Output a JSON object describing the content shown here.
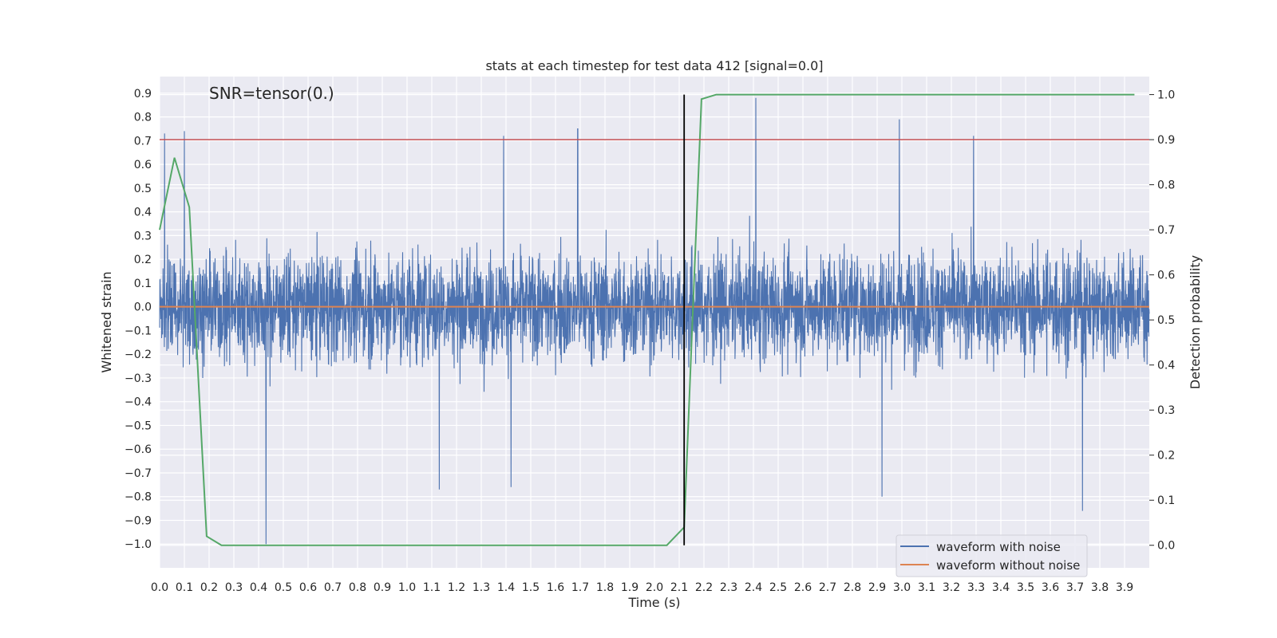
{
  "chart_data": {
    "type": "line",
    "title": "stats at each timestep for test data 412 [signal=0.0]",
    "xlabel": "Time (s)",
    "ylabel": "Whitened strain",
    "y2label": "Detection probability",
    "annotation": "SNR=tensor(0.)",
    "xlim": [
      0.0,
      4.0
    ],
    "ylim": [
      -1.1,
      0.97
    ],
    "y2lim": [
      -0.05,
      1.04
    ],
    "x_ticks": [
      "0.0",
      "0.1",
      "0.2",
      "0.3",
      "0.4",
      "0.5",
      "0.6",
      "0.7",
      "0.8",
      "0.9",
      "1.0",
      "1.1",
      "1.2",
      "1.3",
      "1.4",
      "1.5",
      "1.6",
      "1.7",
      "1.8",
      "1.9",
      "2.0",
      "2.1",
      "2.2",
      "2.3",
      "2.4",
      "2.5",
      "2.6",
      "2.7",
      "2.8",
      "2.9",
      "3.0",
      "3.1",
      "3.2",
      "3.3",
      "3.4",
      "3.5",
      "3.6",
      "3.7",
      "3.8",
      "3.9"
    ],
    "y_ticks": [
      "0.9",
      "0.8",
      "0.7",
      "0.6",
      "0.5",
      "0.4",
      "0.3",
      "0.2",
      "0.1",
      "0.0",
      "−0.1",
      "−0.2",
      "−0.3",
      "−0.4",
      "−0.5",
      "−0.6",
      "−0.7",
      "−0.8",
      "−0.9",
      "−1.0"
    ],
    "y2_ticks": [
      "1.0",
      "0.9",
      "0.8",
      "0.7",
      "0.6",
      "0.5",
      "0.4",
      "0.3",
      "0.2",
      "0.1",
      "0.0"
    ],
    "grid": true,
    "legend_position": "lower-right",
    "series": [
      {
        "name": "waveform with noise",
        "color": "#4c72b0",
        "axis": "left",
        "noise_sigma": 0.22,
        "spikes": [
          [
            0.02,
            0.73
          ],
          [
            0.1,
            0.74
          ],
          [
            0.43,
            -1.0
          ],
          [
            1.39,
            0.72
          ],
          [
            1.69,
            0.75
          ],
          [
            2.41,
            0.88
          ],
          [
            2.99,
            0.79
          ],
          [
            3.29,
            0.72
          ],
          [
            3.73,
            -0.86
          ],
          [
            2.92,
            -0.8
          ],
          [
            1.13,
            -0.77
          ],
          [
            1.42,
            -0.76
          ]
        ]
      },
      {
        "name": "waveform without noise",
        "color": "#dd8452",
        "axis": "left",
        "x": [
          0.0,
          4.0
        ],
        "y": [
          0.0,
          0.0
        ]
      },
      {
        "color": "#55a868",
        "axis": "right",
        "x": [
          0.0,
          0.06,
          0.12,
          0.19,
          0.25,
          0.5,
          1.0,
          1.5,
          1.8,
          2.05,
          2.12,
          2.15,
          2.19,
          2.25,
          2.5,
          3.0,
          3.5,
          3.94
        ],
        "y": [
          0.7,
          0.86,
          0.75,
          0.02,
          0.0,
          0.0,
          0.0,
          0.0,
          0.0,
          0.0,
          0.04,
          0.45,
          0.99,
          1.0,
          1.0,
          1.0,
          1.0,
          1.0
        ]
      }
    ],
    "hlines": [
      {
        "axis": "right",
        "y": 0.9,
        "color": "#c44e52"
      }
    ],
    "vlines": [
      {
        "x": 2.12,
        "color": "#000000"
      }
    ]
  }
}
